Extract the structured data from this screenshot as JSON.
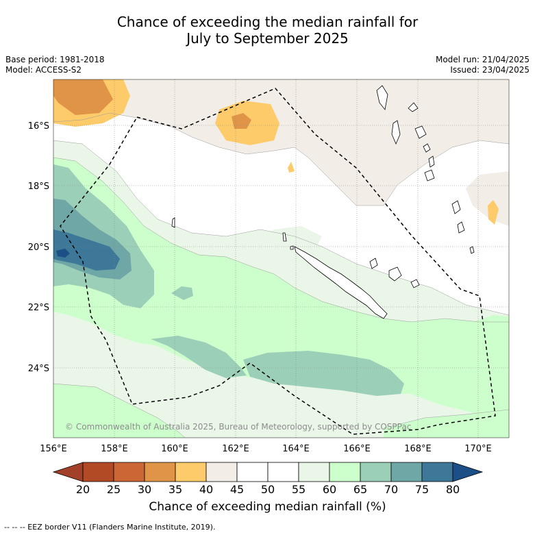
{
  "title_line1": "Chance of exceeding the median rainfall for",
  "title_line2": "July to September 2025",
  "left_meta": {
    "base_period": "Base period: 1981-2018",
    "model": "Model: ACCESS-S2"
  },
  "right_meta": {
    "model_run": "Model run: 21/04/2025",
    "issued": "Issued: 23/04/2025"
  },
  "axes": {
    "x_ticks": [
      "156°E",
      "158°E",
      "160°E",
      "162°E",
      "164°E",
      "166°E",
      "168°E",
      "170°E"
    ],
    "y_ticks": [
      "16°S",
      "18°S",
      "20°S",
      "22°S",
      "24°S"
    ]
  },
  "watermark": "© Commonwealth of Australia 2025, Bureau of Meteorology, supported by COSPPac",
  "colorbar": {
    "label": "Chance of exceeding median rainfall (%)",
    "ticks": [
      "20",
      "25",
      "30",
      "35",
      "40",
      "45",
      "50",
      "55",
      "60",
      "65",
      "70",
      "75",
      "80"
    ],
    "colors": [
      "#a2402a",
      "#b24a25",
      "#cc6634",
      "#e09448",
      "#fecb6a",
      "#f2ede6",
      "#ffffff",
      "#ffffff",
      "#eaf6e8",
      "#ccffcc",
      "#9ccfb8",
      "#6fa6a6",
      "#3d7898",
      "#1c4f86"
    ]
  },
  "footnote": "--  --  -- EEZ border V11 (Flanders Marine Institute, 2019)."
}
